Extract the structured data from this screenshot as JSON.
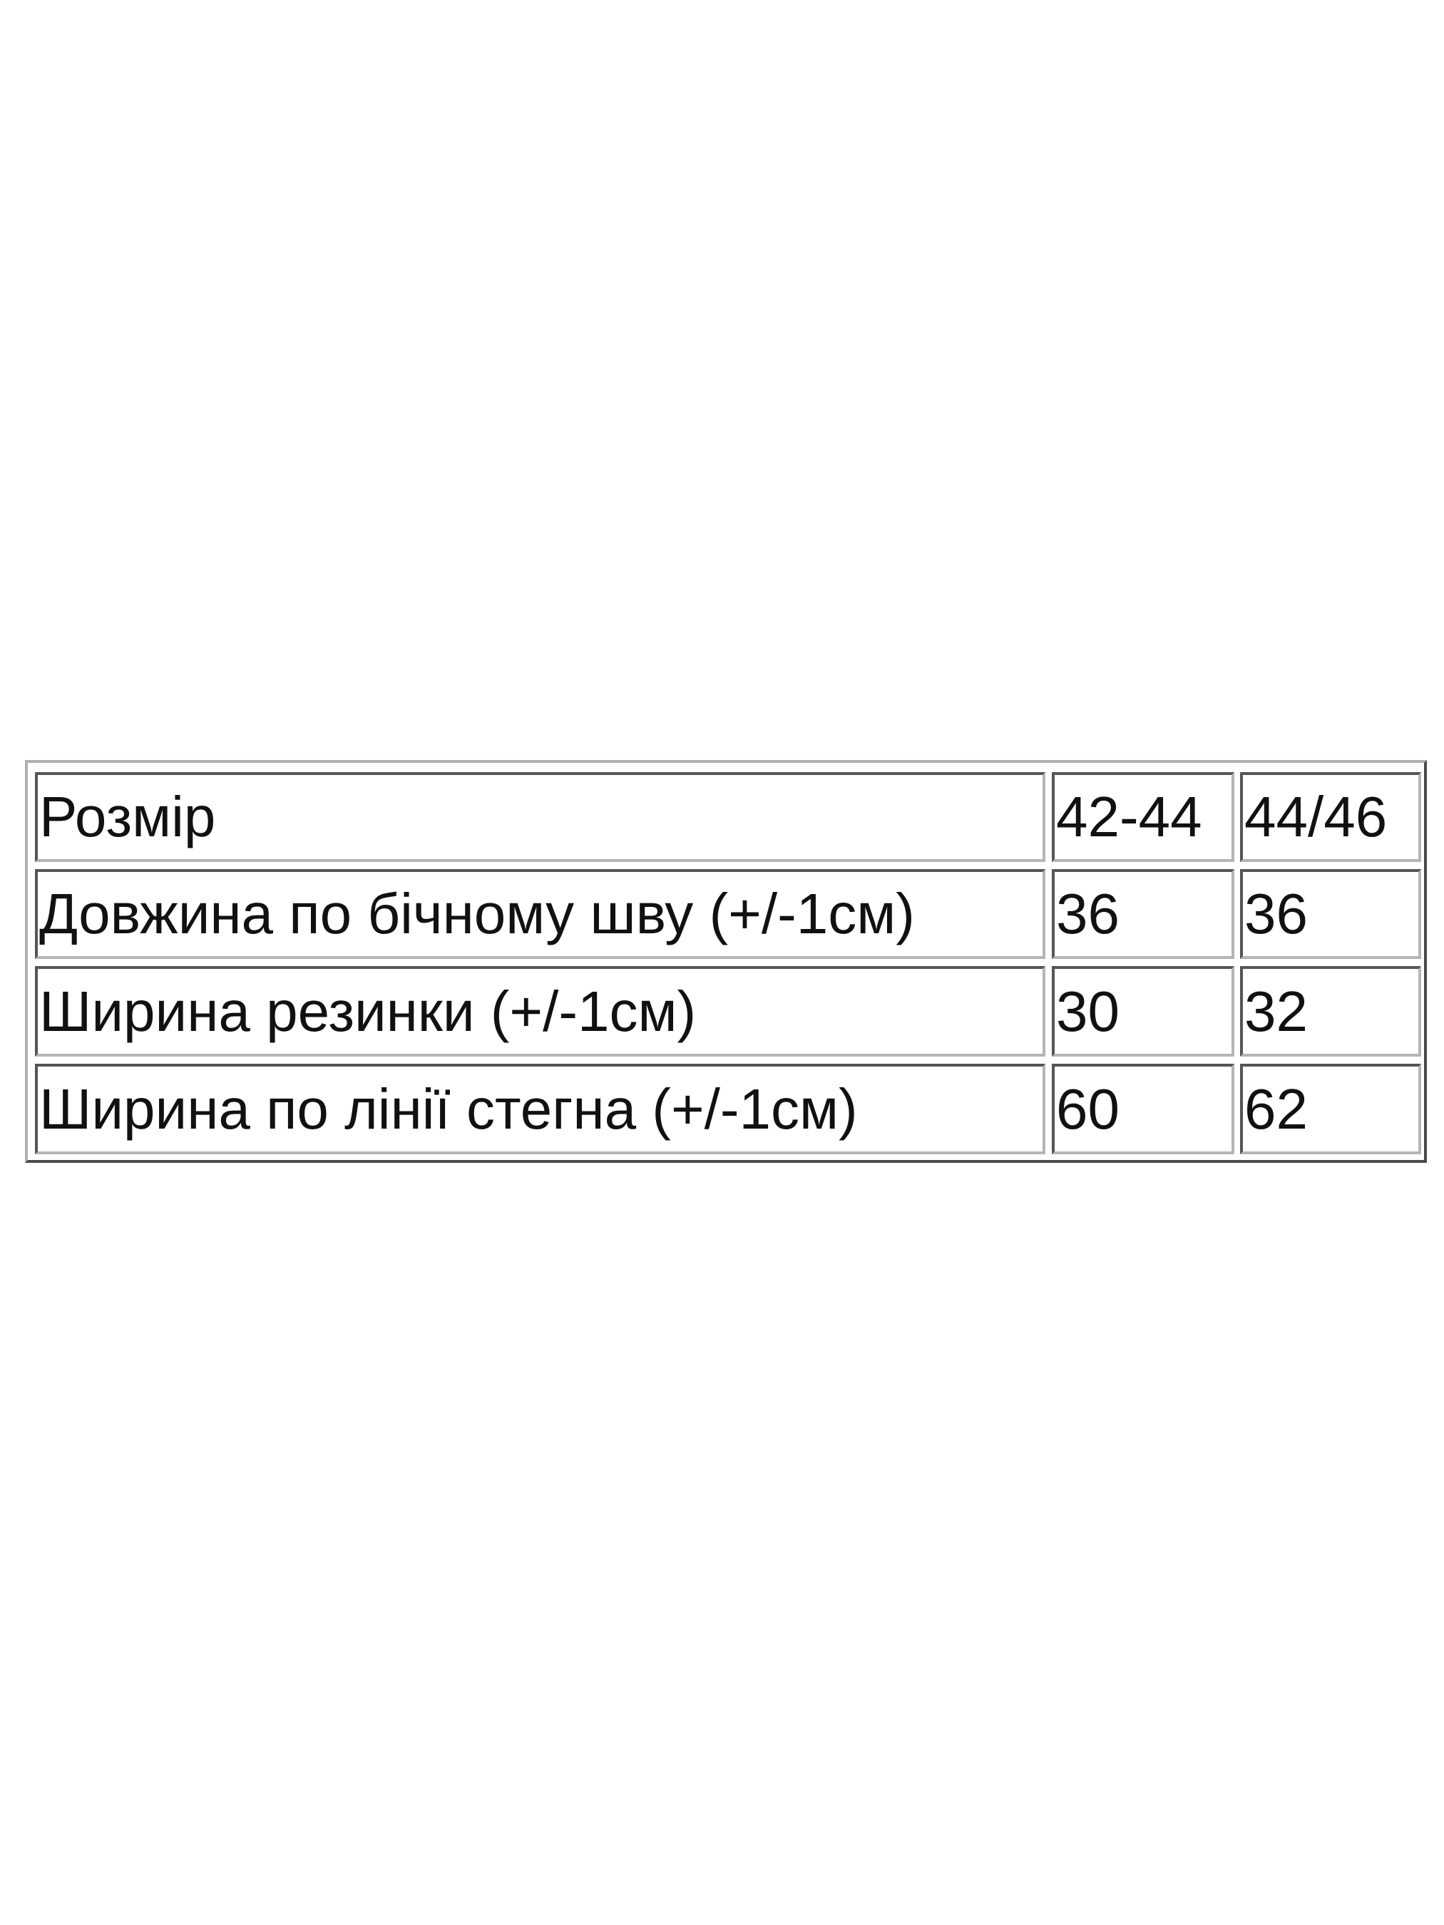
{
  "table": {
    "header": [
      "Розмір",
      "42-44",
      "44/46"
    ],
    "rows": [
      [
        "Довжина по бічному шву (+/-1см)",
        "36",
        "36"
      ],
      [
        "Ширина резинки (+/-1см)",
        "30",
        "32"
      ],
      [
        "Ширина по лінії стегна (+/-1см)",
        "60",
        "62"
      ]
    ]
  }
}
